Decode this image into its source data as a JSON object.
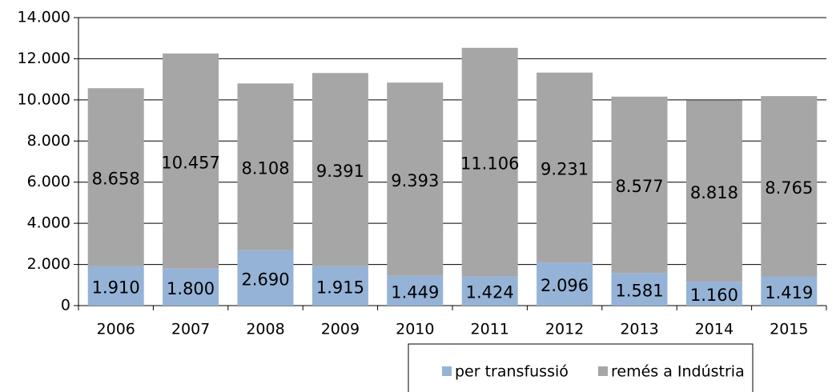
{
  "chart_data": {
    "type": "stacked_bar",
    "categories": [
      "2006",
      "2007",
      "2008",
      "2009",
      "2010",
      "2011",
      "2012",
      "2013",
      "2014",
      "2015"
    ],
    "series": [
      {
        "name": "per transfussió",
        "color": "#95b3d7",
        "values": [
          1910,
          1800,
          2690,
          1915,
          1449,
          1424,
          2096,
          1581,
          1160,
          1419
        ],
        "value_labels": [
          "1.910",
          "1.800",
          "2.690",
          "1.915",
          "1.449",
          "1.424",
          "2.096",
          "1.581",
          "1.160",
          "1.419"
        ]
      },
      {
        "name": "remés a Indústria",
        "color": "#a6a6a6",
        "values": [
          8658,
          10457,
          8108,
          9391,
          9393,
          11106,
          9231,
          8577,
          8818,
          8765
        ],
        "value_labels": [
          "8.658",
          "10.457",
          "8.108",
          "9.391",
          "9.393",
          "11.106",
          "9.231",
          "8.577",
          "8.818",
          "8.765"
        ]
      }
    ],
    "ylim": [
      0,
      14000
    ],
    "yticks": [
      0,
      {
        "value": 2000,
        "label": "2.000"
      },
      {
        "value": 4000,
        "label": "4.000"
      },
      {
        "value": 6000,
        "label": "6.000"
      },
      {
        "value": 8000,
        "label": "8.000"
      },
      {
        "value": 10000,
        "label": "10.000"
      },
      {
        "value": 12000,
        "label": "12.000"
      },
      {
        "value": 14000,
        "label": "14.000"
      }
    ],
    "grid": true,
    "legend": "bottom"
  }
}
